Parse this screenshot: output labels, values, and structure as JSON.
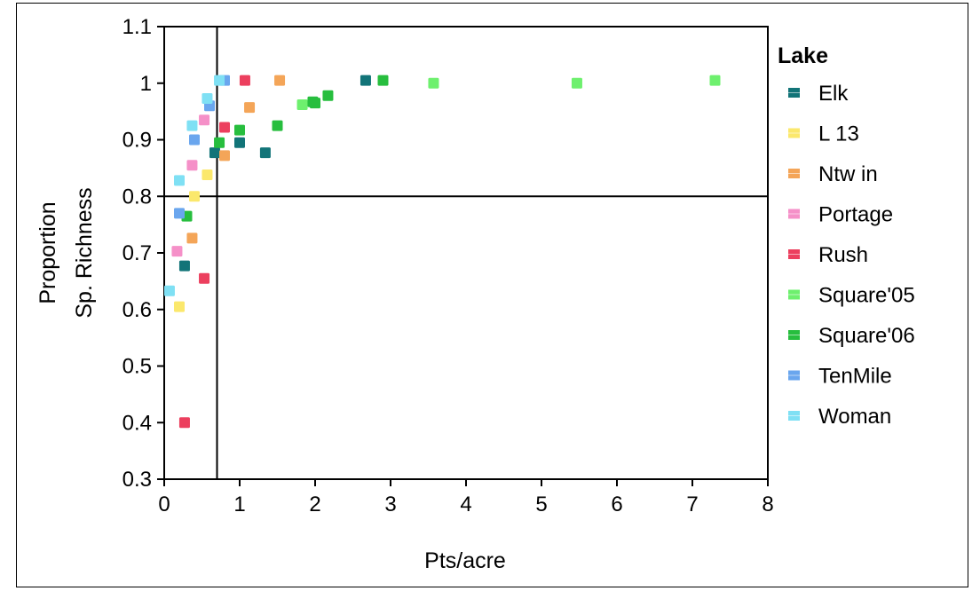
{
  "chart_data": {
    "type": "scatter",
    "title": "",
    "xlabel": "Pts/acre",
    "ylabel_lines": [
      "Proportion",
      "Sp. Richness"
    ],
    "xlim": [
      0,
      8
    ],
    "ylim": [
      0.3,
      1.1
    ],
    "xticks": [
      0,
      1,
      2,
      3,
      4,
      5,
      6,
      7,
      8
    ],
    "yticks": [
      0.3,
      0.4,
      0.5,
      0.6,
      0.7,
      0.8,
      0.9,
      1,
      1.1
    ],
    "reference_lines": {
      "x": 0.7,
      "y": 0.8
    },
    "grid": false,
    "legend": {
      "title": "Lake",
      "placement": "right"
    },
    "series": [
      {
        "name": "Elk",
        "color": "#127478",
        "points": [
          [
            0.27,
            0.677
          ],
          [
            0.67,
            0.877
          ],
          [
            1.0,
            0.895
          ],
          [
            1.34,
            0.877
          ],
          [
            2.67,
            1.005
          ]
        ]
      },
      {
        "name": "L 13",
        "color": "#fbe86c",
        "points": [
          [
            0.2,
            0.605
          ],
          [
            0.4,
            0.8
          ],
          [
            0.57,
            0.838
          ]
        ]
      },
      {
        "name": "Ntw in",
        "color": "#f4a558",
        "points": [
          [
            0.37,
            0.726
          ],
          [
            0.8,
            0.872
          ],
          [
            1.13,
            0.957
          ],
          [
            1.53,
            1.005
          ]
        ]
      },
      {
        "name": "Portage",
        "color": "#f590c8",
        "points": [
          [
            0.17,
            0.703
          ],
          [
            0.37,
            0.855
          ],
          [
            0.53,
            0.935
          ]
        ]
      },
      {
        "name": "Rush",
        "color": "#ec3f5e",
        "points": [
          [
            0.27,
            0.4
          ],
          [
            0.53,
            0.655
          ],
          [
            0.8,
            0.922
          ],
          [
            1.07,
            1.005
          ]
        ]
      },
      {
        "name": "Square'05",
        "color": "#6ef06e",
        "points": [
          [
            1.83,
            0.962
          ],
          [
            3.57,
            1.0
          ],
          [
            5.47,
            1.0
          ],
          [
            7.3,
            1.005
          ]
        ]
      },
      {
        "name": "Square'06",
        "color": "#27be3e",
        "points": [
          [
            0.3,
            0.765
          ],
          [
            0.73,
            0.895
          ],
          [
            1.0,
            0.917
          ],
          [
            1.5,
            0.925
          ],
          [
            1.97,
            0.967
          ],
          [
            2.0,
            0.965
          ],
          [
            2.17,
            0.978
          ],
          [
            2.9,
            1.005
          ]
        ]
      },
      {
        "name": "TenMile",
        "color": "#6aa6ee",
        "points": [
          [
            0.2,
            0.77
          ],
          [
            0.4,
            0.9
          ],
          [
            0.6,
            0.96
          ],
          [
            0.8,
            1.005
          ]
        ]
      },
      {
        "name": "Woman",
        "color": "#7fe0f4",
        "points": [
          [
            0.07,
            0.633
          ],
          [
            0.2,
            0.828
          ],
          [
            0.37,
            0.925
          ],
          [
            0.57,
            0.973
          ],
          [
            0.73,
            1.005
          ]
        ]
      }
    ]
  }
}
